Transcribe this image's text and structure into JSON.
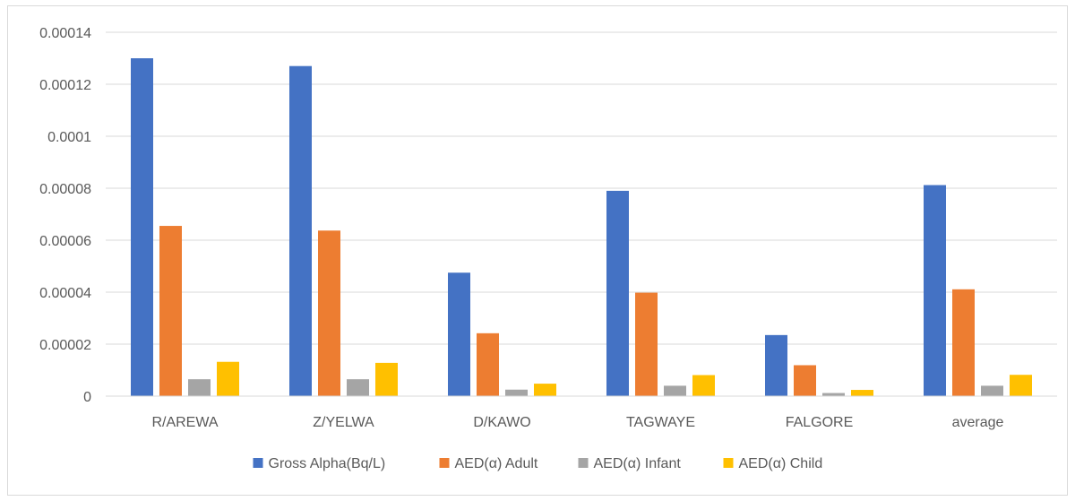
{
  "chart_data": {
    "type": "bar",
    "title": "",
    "xlabel": "",
    "ylabel": "",
    "categories": [
      "R/AREWA",
      "Z/YELWA",
      "D/KAWO",
      "TAGWAYE",
      "FALGORE",
      "average"
    ],
    "series": [
      {
        "name": "Gross Alpha(Bq/L)",
        "color": "#4472C4",
        "values": [
          0.00013,
          0.000127,
          4.75e-05,
          7.9e-05,
          2.35e-05,
          8.12e-05
        ]
      },
      {
        "name": "AED(α) Adult",
        "color": "#ED7D31",
        "values": [
          6.55e-05,
          6.37e-05,
          2.42e-05,
          3.98e-05,
          1.19e-05,
          4.11e-05
        ]
      },
      {
        "name": "AED(α) Infant",
        "color": "#A5A5A5",
        "values": [
          6.5e-06,
          6.5e-06,
          2.5e-06,
          4e-06,
          1.2e-06,
          4e-06
        ]
      },
      {
        "name": "AED(α) Child",
        "color": "#FFC000",
        "values": [
          1.32e-05,
          1.28e-05,
          4.8e-06,
          8.1e-06,
          2.4e-06,
          8.2e-06
        ]
      }
    ],
    "ylim": [
      0,
      0.00014
    ],
    "yticks": [
      0,
      2e-05,
      4e-05,
      6e-05,
      8e-05,
      0.0001,
      0.00012,
      0.00014
    ],
    "ytick_labels": [
      "0",
      "0.00002",
      "0.00004",
      "0.00006",
      "0.00008",
      "0.0001",
      "0.00012",
      "0.00014"
    ],
    "grid": true,
    "legend": "bottom"
  }
}
